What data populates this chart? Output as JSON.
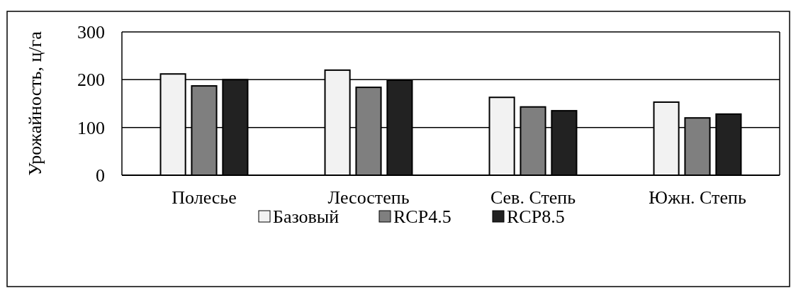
{
  "chart_data": {
    "type": "bar",
    "ylabel": "Урожайность, ц/га",
    "categories": [
      "Полесье",
      "Лесостепь",
      "Сев. Степь",
      "Южн. Степь"
    ],
    "series": [
      {
        "name": "Базовый",
        "color": "#f2f2f2",
        "values": [
          212,
          220,
          163,
          153
        ]
      },
      {
        "name": "RCP4.5",
        "color": "#7f7f7f",
        "values": [
          187,
          184,
          143,
          120
        ]
      },
      {
        "name": "RCP8.5",
        "color": "#222222",
        "values": [
          200,
          199,
          135,
          128
        ]
      }
    ],
    "ylim": [
      0,
      300
    ],
    "yticks": [
      0,
      100,
      200,
      300
    ],
    "grid": "y",
    "legend": "bottom"
  }
}
